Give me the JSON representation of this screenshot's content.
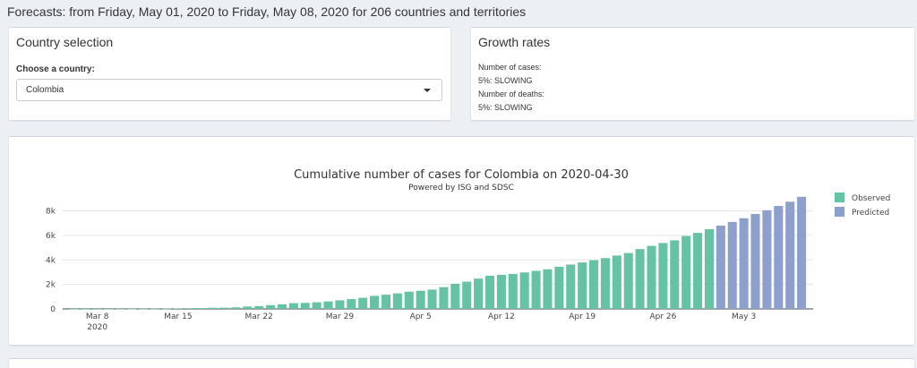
{
  "header": {
    "text": "Forecasts: from Friday, May 01, 2020 to Friday, May 08, 2020 for 206 countries and territories"
  },
  "country_box": {
    "title": "Country selection",
    "choose_label": "Choose a country:",
    "selected": "Colombia"
  },
  "growth_box": {
    "title": "Growth rates",
    "lines": [
      "Number of cases:",
      "5%: SLOWING",
      "Number of deaths:",
      "5%: SLOWING"
    ]
  },
  "colors": {
    "observed": "#66c2a5",
    "predicted": "#8da0cb"
  },
  "chart_data": {
    "type": "bar",
    "title": "Cumulative number of cases for Colombia on 2020-04-30",
    "subtitle": "Powered by ISG and SDSC",
    "xlabel": "",
    "ylabel": "",
    "ylim": [
      0,
      9500
    ],
    "y_ticks": [
      0,
      2000,
      4000,
      6000,
      8000
    ],
    "y_tick_labels": [
      "0",
      "2k",
      "4k",
      "6k",
      "8k"
    ],
    "x_ticks": [
      "2020-03-08",
      "2020-03-15",
      "2020-03-22",
      "2020-03-29",
      "2020-04-05",
      "2020-04-12",
      "2020-04-19",
      "2020-04-26",
      "2020-05-03"
    ],
    "x_tick_labels": [
      "Mar 8",
      "Mar 15",
      "Mar 22",
      "Mar 29",
      "Apr 5",
      "Apr 12",
      "Apr 19",
      "Apr 26",
      "May 3"
    ],
    "x_tick_sublabel": "2020",
    "legend_position": "top-right",
    "grid": true,
    "series": [
      {
        "name": "Observed",
        "x": [
          "2020-03-06",
          "2020-03-07",
          "2020-03-08",
          "2020-03-09",
          "2020-03-10",
          "2020-03-11",
          "2020-03-12",
          "2020-03-13",
          "2020-03-14",
          "2020-03-15",
          "2020-03-16",
          "2020-03-17",
          "2020-03-18",
          "2020-03-19",
          "2020-03-20",
          "2020-03-21",
          "2020-03-22",
          "2020-03-23",
          "2020-03-24",
          "2020-03-25",
          "2020-03-26",
          "2020-03-27",
          "2020-03-28",
          "2020-03-29",
          "2020-03-30",
          "2020-03-31",
          "2020-04-01",
          "2020-04-02",
          "2020-04-03",
          "2020-04-04",
          "2020-04-05",
          "2020-04-06",
          "2020-04-07",
          "2020-04-08",
          "2020-04-09",
          "2020-04-10",
          "2020-04-11",
          "2020-04-12",
          "2020-04-13",
          "2020-04-14",
          "2020-04-15",
          "2020-04-16",
          "2020-04-17",
          "2020-04-18",
          "2020-04-19",
          "2020-04-20",
          "2020-04-21",
          "2020-04-22",
          "2020-04-23",
          "2020-04-24",
          "2020-04-25",
          "2020-04-26",
          "2020-04-27",
          "2020-04-28",
          "2020-04-29",
          "2020-04-30"
        ],
        "values": [
          1,
          1,
          1,
          3,
          3,
          9,
          9,
          16,
          24,
          45,
          57,
          65,
          93,
          102,
          128,
          196,
          231,
          306,
          378,
          470,
          491,
          539,
          608,
          702,
          798,
          906,
          1065,
          1161,
          1267,
          1406,
          1485,
          1579,
          1780,
          2054,
          2223,
          2473,
          2709,
          2776,
          2852,
          2979,
          3105,
          3233,
          3439,
          3621,
          3792,
          3977,
          4149,
          4356,
          4561,
          4881,
          5142,
          5379,
          5597,
          5949,
          6207,
          6507
        ]
      },
      {
        "name": "Predicted",
        "x": [
          "2020-05-01",
          "2020-05-02",
          "2020-05-03",
          "2020-05-04",
          "2020-05-05",
          "2020-05-06",
          "2020-05-07",
          "2020-05-08"
        ],
        "values": [
          6800,
          7100,
          7400,
          7750,
          8050,
          8400,
          8750,
          9150
        ]
      }
    ]
  }
}
